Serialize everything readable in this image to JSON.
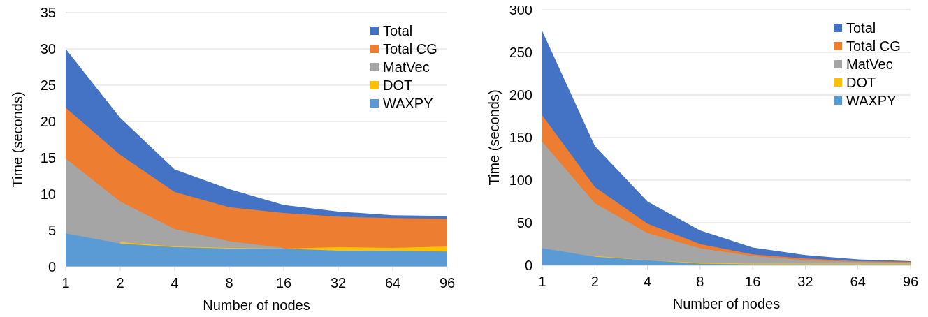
{
  "chart_data": [
    {
      "type": "area",
      "xlabel": "Number of nodes",
      "ylabel": "Time (seconds)",
      "categories": [
        "1",
        "2",
        "4",
        "8",
        "16",
        "32",
        "64",
        "96"
      ],
      "ylim": [
        0,
        35
      ],
      "yticks": [
        0,
        5,
        10,
        15,
        20,
        25,
        30,
        35
      ],
      "grid": "y",
      "legend": "top right",
      "series": [
        {
          "name": "Total",
          "color": "#4472c4",
          "values": [
            30,
            20.5,
            13.4,
            10.7,
            8.5,
            7.6,
            7.1,
            7.0
          ]
        },
        {
          "name": "Total CG",
          "color": "#ed7d31",
          "values": [
            21.9,
            15.4,
            10.3,
            8.2,
            7.4,
            6.9,
            6.7,
            6.6
          ]
        },
        {
          "name": "MatVec",
          "color": "#a5a5a5",
          "values": [
            14.9,
            9.0,
            5.2,
            3.5,
            2.6,
            null,
            null,
            null
          ]
        },
        {
          "name": "DOT",
          "color": "#ffc000",
          "values": [
            null,
            3.4,
            2.8,
            2.6,
            2.5,
            2.7,
            2.6,
            2.8
          ]
        },
        {
          "name": "WAXPY",
          "color": "#5b9bd5",
          "values": [
            4.6,
            3.2,
            2.7,
            2.5,
            2.5,
            2.2,
            2.2,
            2.1
          ]
        }
      ]
    },
    {
      "type": "area",
      "xlabel": "Number of nodes",
      "ylabel": "Time (seconds)",
      "categories": [
        "1",
        "2",
        "4",
        "8",
        "16",
        "32",
        "64",
        "96"
      ],
      "ylim": [
        0,
        300
      ],
      "yticks": [
        0,
        50,
        100,
        150,
        200,
        250,
        300
      ],
      "grid": "y",
      "legend": "top right",
      "series": [
        {
          "name": "Total",
          "color": "#4472c4",
          "values": [
            275,
            140,
            75,
            41,
            21,
            12,
            7,
            5
          ]
        },
        {
          "name": "Total CG",
          "color": "#ed7d31",
          "values": [
            176,
            92,
            49,
            25,
            13,
            8,
            5,
            4
          ]
        },
        {
          "name": "MatVec",
          "color": "#a5a5a5",
          "values": [
            145,
            73,
            38,
            20,
            11,
            6,
            4,
            3
          ]
        },
        {
          "name": "DOT",
          "color": "#ffc000",
          "values": [
            null,
            11,
            6,
            3,
            2,
            2,
            2,
            2
          ]
        },
        {
          "name": "WAXPY",
          "color": "#5b9bd5",
          "values": [
            20,
            10,
            6,
            2,
            1,
            1,
            1,
            1
          ]
        }
      ]
    }
  ]
}
